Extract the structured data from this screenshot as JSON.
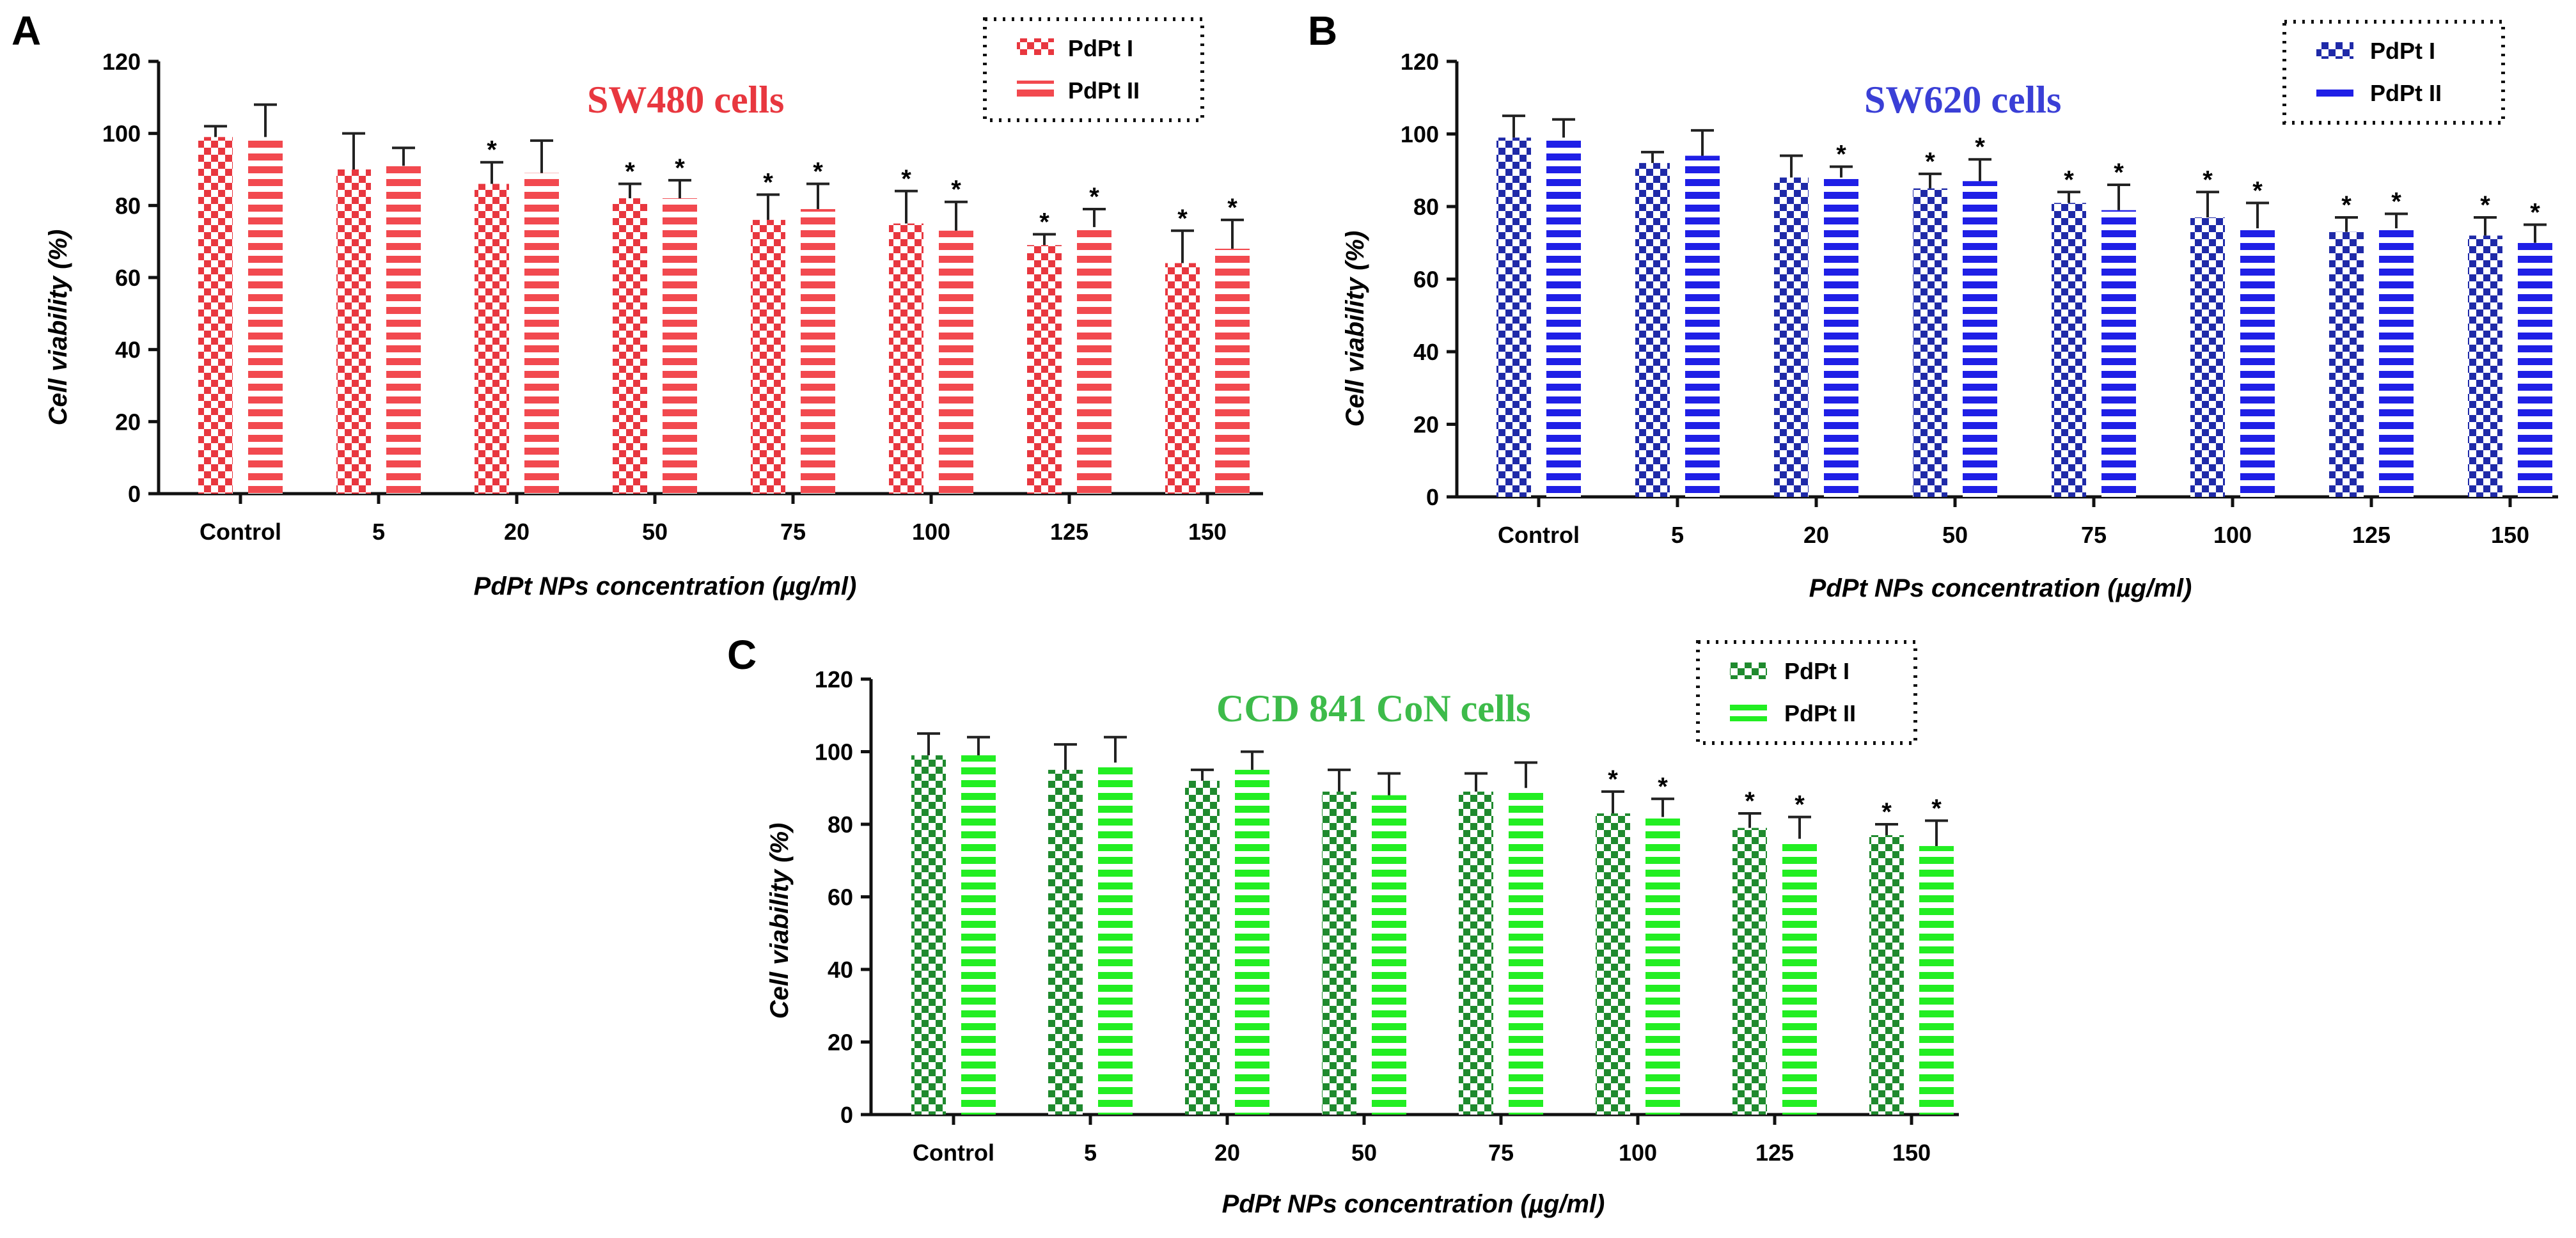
{
  "figure": {
    "panels": [
      "A",
      "B",
      "C"
    ]
  },
  "chart_data": [
    {
      "panel": "A",
      "type": "bar",
      "title": "SW480 cells",
      "title_color": "#e8373f",
      "xlabel": "PdPt NPs concentration (µg/ml)",
      "ylabel": "Cell viability (%)",
      "ylim": [
        0,
        120
      ],
      "yticks": [
        0,
        20,
        40,
        60,
        80,
        100,
        120
      ],
      "grid": false,
      "legend_position": "top-right",
      "categories": [
        "Control",
        "5",
        "20",
        "50",
        "75",
        "100",
        "125",
        "150"
      ],
      "series": [
        {
          "name": "PdPt I",
          "pattern": "checker",
          "color": "#e8373f",
          "values": [
            99,
            90,
            86,
            82,
            76,
            75,
            69,
            64
          ],
          "errors": [
            3,
            10,
            6,
            4,
            7,
            9,
            3,
            9
          ],
          "significant": [
            false,
            false,
            true,
            true,
            true,
            true,
            true,
            true
          ]
        },
        {
          "name": "PdPt II",
          "pattern": "stripes",
          "color": "#f2494f",
          "values": [
            99,
            91,
            89,
            82,
            79,
            73,
            74,
            68
          ],
          "errors": [
            9,
            5,
            9,
            5,
            7,
            8,
            5,
            8
          ],
          "significant": [
            false,
            false,
            false,
            true,
            true,
            true,
            true,
            true
          ]
        }
      ]
    },
    {
      "panel": "B",
      "type": "bar",
      "title": "SW620 cells",
      "title_color": "#3a3fd6",
      "xlabel": "PdPt NPs concentration (µg/ml)",
      "ylabel": "Cell viability (%)",
      "ylim": [
        0,
        120
      ],
      "yticks": [
        0,
        20,
        40,
        60,
        80,
        100,
        120
      ],
      "grid": false,
      "legend_position": "top-right",
      "categories": [
        "Control",
        "5",
        "20",
        "50",
        "75",
        "100",
        "125",
        "150"
      ],
      "series": [
        {
          "name": "PdPt I",
          "pattern": "checker",
          "color": "#1f2aa8",
          "values": [
            99,
            92,
            88,
            85,
            81,
            77,
            73,
            72
          ],
          "errors": [
            6,
            3,
            6,
            4,
            3,
            7,
            4,
            5
          ],
          "significant": [
            false,
            false,
            false,
            true,
            true,
            true,
            true,
            true
          ]
        },
        {
          "name": "PdPt II",
          "pattern": "stripes",
          "color": "#1f1fe6",
          "values": [
            99,
            94,
            88,
            87,
            79,
            74,
            74,
            70
          ],
          "errors": [
            5,
            7,
            3,
            6,
            7,
            7,
            4,
            5
          ],
          "significant": [
            false,
            false,
            true,
            true,
            true,
            true,
            true,
            true
          ]
        }
      ]
    },
    {
      "panel": "C",
      "type": "bar",
      "title": "CCD 841 CoN cells",
      "title_color": "#3dbb4a",
      "xlabel": "PdPt NPs concentration (µg/ml)",
      "ylabel": "Cell viability (%)",
      "ylim": [
        0,
        120
      ],
      "yticks": [
        0,
        20,
        40,
        60,
        80,
        100,
        120
      ],
      "grid": false,
      "legend_position": "top-right",
      "categories": [
        "Control",
        "5",
        "20",
        "50",
        "75",
        "100",
        "125",
        "150"
      ],
      "series": [
        {
          "name": "PdPt I",
          "pattern": "checker",
          "color": "#1f8a2e",
          "values": [
            99,
            95,
            92,
            89,
            89,
            83,
            79,
            77
          ],
          "errors": [
            6,
            7,
            3,
            6,
            5,
            6,
            4,
            3
          ],
          "significant": [
            false,
            false,
            false,
            false,
            false,
            true,
            true,
            true
          ]
        },
        {
          "name": "PdPt II",
          "pattern": "stripes",
          "color": "#22ee22",
          "values": [
            99,
            97,
            95,
            88,
            90,
            82,
            76,
            74
          ],
          "errors": [
            5,
            7,
            5,
            6,
            7,
            5,
            6,
            7
          ],
          "significant": [
            false,
            false,
            false,
            false,
            false,
            true,
            true,
            true
          ]
        }
      ]
    }
  ]
}
